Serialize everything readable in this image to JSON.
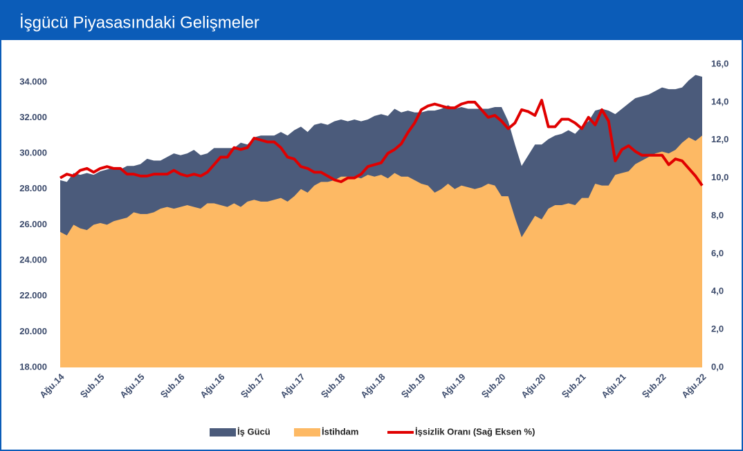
{
  "chart_data": {
    "type": "area",
    "title": "İşgücü Piyasasındaki Gelişmeler",
    "categories": [
      "Ağu.14",
      null,
      null,
      null,
      null,
      null,
      "Şub.15",
      null,
      null,
      null,
      null,
      null,
      "Ağu.15",
      null,
      null,
      null,
      null,
      null,
      "Şub.16",
      null,
      null,
      null,
      null,
      null,
      "Ağu.16",
      null,
      null,
      null,
      null,
      null,
      "Şub.17",
      null,
      null,
      null,
      null,
      null,
      "Ağu.17",
      null,
      null,
      null,
      null,
      null,
      "Şub.18",
      null,
      null,
      null,
      null,
      null,
      "Ağu.18",
      null,
      null,
      null,
      null,
      null,
      "Şub.19",
      null,
      null,
      null,
      null,
      null,
      "Ağu.19",
      null,
      null,
      null,
      null,
      null,
      "Şub.20",
      null,
      null,
      null,
      null,
      null,
      "Ağu.20",
      null,
      null,
      null,
      null,
      null,
      "Şub.21",
      null,
      null,
      null,
      null,
      null,
      "Ağu.21",
      null,
      null,
      null,
      null,
      null,
      "Şub.22",
      null,
      null,
      null,
      null,
      null,
      "Ağu.22"
    ],
    "series": [
      {
        "name": "İş Gücü",
        "color": "#4b5b7b",
        "values": [
          28500,
          28400,
          28900,
          28800,
          28900,
          28800,
          29000,
          29100,
          29200,
          29100,
          29300,
          29300,
          29400,
          29700,
          29600,
          29600,
          29800,
          30000,
          29900,
          30000,
          30200,
          29900,
          30000,
          30300,
          30300,
          30300,
          30300,
          30600,
          30500,
          30900,
          31000,
          31000,
          31000,
          31200,
          31000,
          31300,
          31500,
          31200,
          31600,
          31700,
          31600,
          31800,
          31900,
          31800,
          31900,
          31800,
          31900,
          32100,
          32200,
          32100,
          32500,
          32300,
          32400,
          32300,
          32300,
          32400,
          32400,
          32500,
          32700,
          32500,
          32600,
          32500,
          32500,
          32500,
          32500,
          32600,
          32600,
          31800,
          30500,
          29300,
          29900,
          30500,
          30500,
          30800,
          31000,
          31100,
          31300,
          31100,
          31500,
          31800,
          32400,
          32500,
          32400,
          32200,
          32500,
          32800,
          33100,
          33200,
          33300,
          33500,
          33700,
          33600,
          33600,
          33700,
          34100,
          34400,
          34300
        ]
      },
      {
        "name": "İstihdam",
        "color": "#fdb964",
        "values": [
          25600,
          25400,
          26000,
          25800,
          25700,
          26000,
          26100,
          26000,
          26200,
          26300,
          26400,
          26700,
          26600,
          26600,
          26700,
          26900,
          27000,
          26900,
          27000,
          27100,
          27000,
          26900,
          27200,
          27200,
          27100,
          27000,
          27200,
          27000,
          27300,
          27400,
          27300,
          27300,
          27400,
          27500,
          27300,
          27600,
          28000,
          27800,
          28200,
          28400,
          28400,
          28500,
          28700,
          28700,
          28700,
          28600,
          28800,
          28700,
          28800,
          28600,
          28900,
          28700,
          28700,
          28500,
          28300,
          28200,
          27800,
          28000,
          28300,
          28000,
          28200,
          28100,
          28000,
          28100,
          28300,
          28200,
          27600,
          27600,
          26400,
          25300,
          25900,
          26500,
          26300,
          26900,
          27100,
          27100,
          27200,
          27100,
          27500,
          27500,
          28300,
          28200,
          28200,
          28800,
          28900,
          29000,
          29400,
          29600,
          29800,
          30000,
          30100,
          30000,
          30200,
          30600,
          30900,
          30700,
          31000
        ]
      },
      {
        "name": "İşsizlik Oranı (Sağ Eksen %)",
        "color": "#e00000",
        "axis": "y2",
        "values": [
          10.0,
          10.2,
          10.1,
          10.4,
          10.5,
          10.3,
          10.5,
          10.6,
          10.5,
          10.5,
          10.2,
          10.2,
          10.1,
          10.1,
          10.2,
          10.2,
          10.2,
          10.4,
          10.2,
          10.1,
          10.2,
          10.1,
          10.3,
          10.7,
          11.1,
          11.1,
          11.6,
          11.5,
          11.6,
          12.1,
          12.0,
          11.9,
          11.9,
          11.6,
          11.1,
          11.0,
          10.6,
          10.5,
          10.3,
          10.3,
          10.1,
          9.9,
          9.8,
          10.0,
          10.0,
          10.2,
          10.6,
          10.7,
          10.8,
          11.3,
          11.5,
          11.8,
          12.4,
          12.9,
          13.6,
          13.8,
          13.9,
          13.8,
          13.7,
          13.7,
          13.9,
          14.0,
          14.0,
          13.6,
          13.2,
          13.3,
          13.0,
          12.6,
          12.9,
          13.6,
          13.5,
          13.3,
          14.1,
          12.7,
          12.7,
          13.1,
          13.1,
          12.9,
          12.6,
          13.2,
          12.8,
          13.6,
          13.0,
          10.9,
          11.5,
          11.7,
          11.4,
          11.2,
          11.2,
          11.2,
          11.2,
          10.7,
          11.0,
          10.9,
          10.5,
          10.1,
          9.6
        ]
      }
    ],
    "ylim": [
      18000,
      35000
    ],
    "yticks": [
      {
        "value": 18000,
        "label": "18.000"
      },
      {
        "value": 20000,
        "label": "20.000"
      },
      {
        "value": 22000,
        "label": "22.000"
      },
      {
        "value": 24000,
        "label": "24.000"
      },
      {
        "value": 26000,
        "label": "26.000"
      },
      {
        "value": 28000,
        "label": "28.000"
      },
      {
        "value": 30000,
        "label": "30.000"
      },
      {
        "value": 32000,
        "label": "32.000"
      },
      {
        "value": 34000,
        "label": "34.000"
      }
    ],
    "y2lim": [
      0,
      16
    ],
    "y2ticks": [
      {
        "value": 0,
        "label": "0,0"
      },
      {
        "value": 2,
        "label": "2,0"
      },
      {
        "value": 4,
        "label": "4,0"
      },
      {
        "value": 6,
        "label": "6,0"
      },
      {
        "value": 8,
        "label": "8,0"
      },
      {
        "value": 10,
        "label": "10,0"
      },
      {
        "value": 12,
        "label": "12,0"
      },
      {
        "value": 14,
        "label": "14,0"
      },
      {
        "value": 16,
        "label": "16,0"
      }
    ],
    "grid": false
  }
}
